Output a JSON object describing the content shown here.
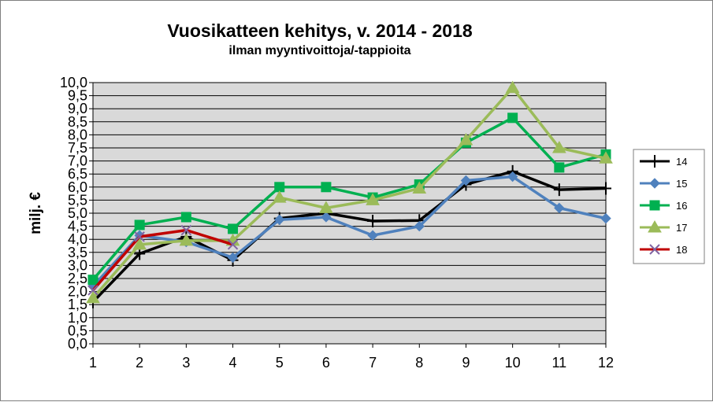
{
  "chart_data": {
    "type": "line",
    "title": "Vuosikatteen kehitys, v. 2014 - 2018",
    "subtitle": "ilman myyntivoittoja/-tappioita",
    "ylabel": "milj. €",
    "xlabel": "",
    "x": [
      1,
      2,
      3,
      4,
      5,
      6,
      7,
      8,
      9,
      10,
      11,
      12
    ],
    "x_tick_labels": [
      "1",
      "2",
      "3",
      "4",
      "5",
      "6",
      "7",
      "8",
      "9",
      "10",
      "11",
      "12"
    ],
    "ylim": [
      0,
      10
    ],
    "y_tick_labels": [
      "0,0",
      "0,5",
      "1,0",
      "1,5",
      "2,0",
      "2,5",
      "3,0",
      "3,5",
      "4,0",
      "4,5",
      "5,0",
      "5,5",
      "6,0",
      "6,5",
      "7,0",
      "7,5",
      "8,0",
      "8,5",
      "9,0",
      "9,5",
      "10,0"
    ],
    "grid": true,
    "legend_position": "right",
    "series": [
      {
        "name": "14",
        "color": "#000000",
        "marker": "plus",
        "values": [
          1.6,
          3.45,
          4.1,
          3.2,
          4.8,
          5.0,
          4.7,
          4.72,
          6.1,
          6.6,
          5.9,
          5.95
        ]
      },
      {
        "name": "15",
        "color": "#4f81bd",
        "marker": "diamond",
        "values": [
          2.2,
          4.15,
          3.9,
          3.3,
          4.75,
          4.85,
          4.15,
          4.5,
          6.25,
          6.4,
          5.2,
          4.8
        ]
      },
      {
        "name": "16",
        "color": "#00b050",
        "marker": "square",
        "values": [
          2.45,
          4.55,
          4.85,
          4.4,
          6.0,
          6.0,
          5.6,
          6.1,
          7.7,
          8.65,
          6.75,
          7.25
        ]
      },
      {
        "name": "17",
        "color": "#9bbb59",
        "marker": "triangle",
        "values": [
          1.75,
          3.8,
          3.95,
          3.95,
          5.6,
          5.2,
          5.5,
          5.95,
          7.8,
          9.8,
          7.5,
          7.1
        ]
      },
      {
        "name": "18",
        "color": "#c00000",
        "marker": "x",
        "values": [
          2.05,
          4.1,
          4.35,
          3.8,
          null,
          null,
          null,
          null,
          null,
          null,
          null,
          null
        ]
      }
    ]
  }
}
